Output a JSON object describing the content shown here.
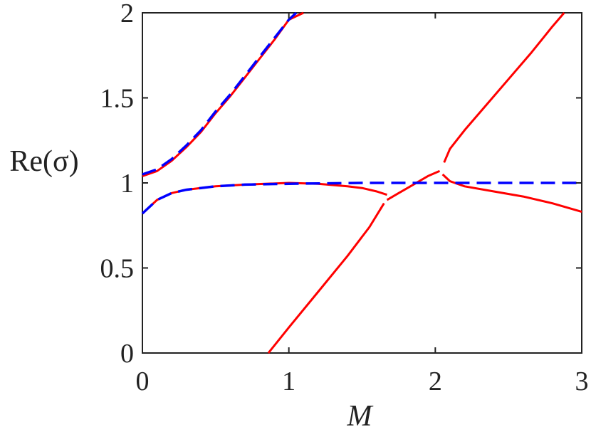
{
  "chart_data": {
    "type": "line",
    "xlabel": "M",
    "ylabel": "Re(σ)",
    "xlim": [
      0,
      3
    ],
    "ylim": [
      0,
      2
    ],
    "xticks": [
      0,
      1,
      2,
      3
    ],
    "xtick_labels": [
      "0",
      "1",
      "2",
      "3"
    ],
    "yticks": [
      0,
      0.5,
      1,
      1.5,
      2
    ],
    "ytick_labels": [
      "0",
      "0.5",
      "1",
      "1.5",
      "2"
    ],
    "grid": false,
    "colors": {
      "solid": "#ff0000",
      "dashed": "#0000ff",
      "axes": "#222222"
    },
    "series": [
      {
        "style": "solid-red",
        "x": [
          0,
          0.1,
          0.2,
          0.3,
          0.4,
          0.5,
          0.6,
          0.7,
          0.8,
          0.9,
          1.0,
          1.1
        ],
        "y": [
          1.04,
          1.07,
          1.13,
          1.21,
          1.3,
          1.41,
          1.51,
          1.62,
          1.73,
          1.84,
          1.96,
          2.0
        ]
      },
      {
        "style": "solid-red",
        "x": [
          0,
          0.1,
          0.2,
          0.3,
          0.5,
          0.7,
          1.0,
          1.2,
          1.4,
          1.5,
          1.6,
          1.67
        ],
        "y": [
          0.82,
          0.9,
          0.94,
          0.96,
          0.98,
          0.99,
          1.0,
          0.995,
          0.98,
          0.97,
          0.95,
          0.93
        ]
      },
      {
        "style": "solid-red",
        "x": [
          0.86,
          1.0,
          1.2,
          1.4,
          1.55,
          1.65
        ],
        "y": [
          0.0,
          0.15,
          0.36,
          0.57,
          0.74,
          0.88
        ]
      },
      {
        "style": "solid-red",
        "x": [
          1.67,
          1.75,
          1.85,
          1.95,
          2.03
        ],
        "y": [
          0.9,
          0.94,
          0.99,
          1.04,
          1.07
        ]
      },
      {
        "style": "solid-red",
        "x": [
          2.06,
          2.1,
          2.2,
          2.35,
          2.5,
          2.65,
          2.8,
          2.88
        ],
        "y": [
          1.12,
          1.2,
          1.31,
          1.46,
          1.61,
          1.76,
          1.92,
          2.0
        ]
      },
      {
        "style": "solid-red",
        "x": [
          2.05,
          2.1,
          2.2,
          2.4,
          2.6,
          2.8,
          3.0
        ],
        "y": [
          1.05,
          1.01,
          0.98,
          0.95,
          0.92,
          0.88,
          0.83
        ]
      },
      {
        "style": "dashed-blue",
        "x": [
          0,
          0.1,
          0.2,
          0.3,
          0.4,
          0.5,
          0.6,
          0.7,
          0.8,
          0.9,
          1.0,
          1.05
        ],
        "y": [
          1.05,
          1.08,
          1.14,
          1.22,
          1.31,
          1.42,
          1.52,
          1.63,
          1.74,
          1.85,
          1.96,
          2.0
        ]
      },
      {
        "style": "dashed-blue",
        "x": [
          0,
          0.1,
          0.2,
          0.3,
          0.5,
          0.7,
          1.0,
          1.5,
          2.0,
          2.5,
          3.0
        ],
        "y": [
          0.82,
          0.9,
          0.94,
          0.96,
          0.98,
          0.99,
          0.995,
          1.0,
          1.0,
          1.0,
          1.0
        ]
      }
    ]
  }
}
